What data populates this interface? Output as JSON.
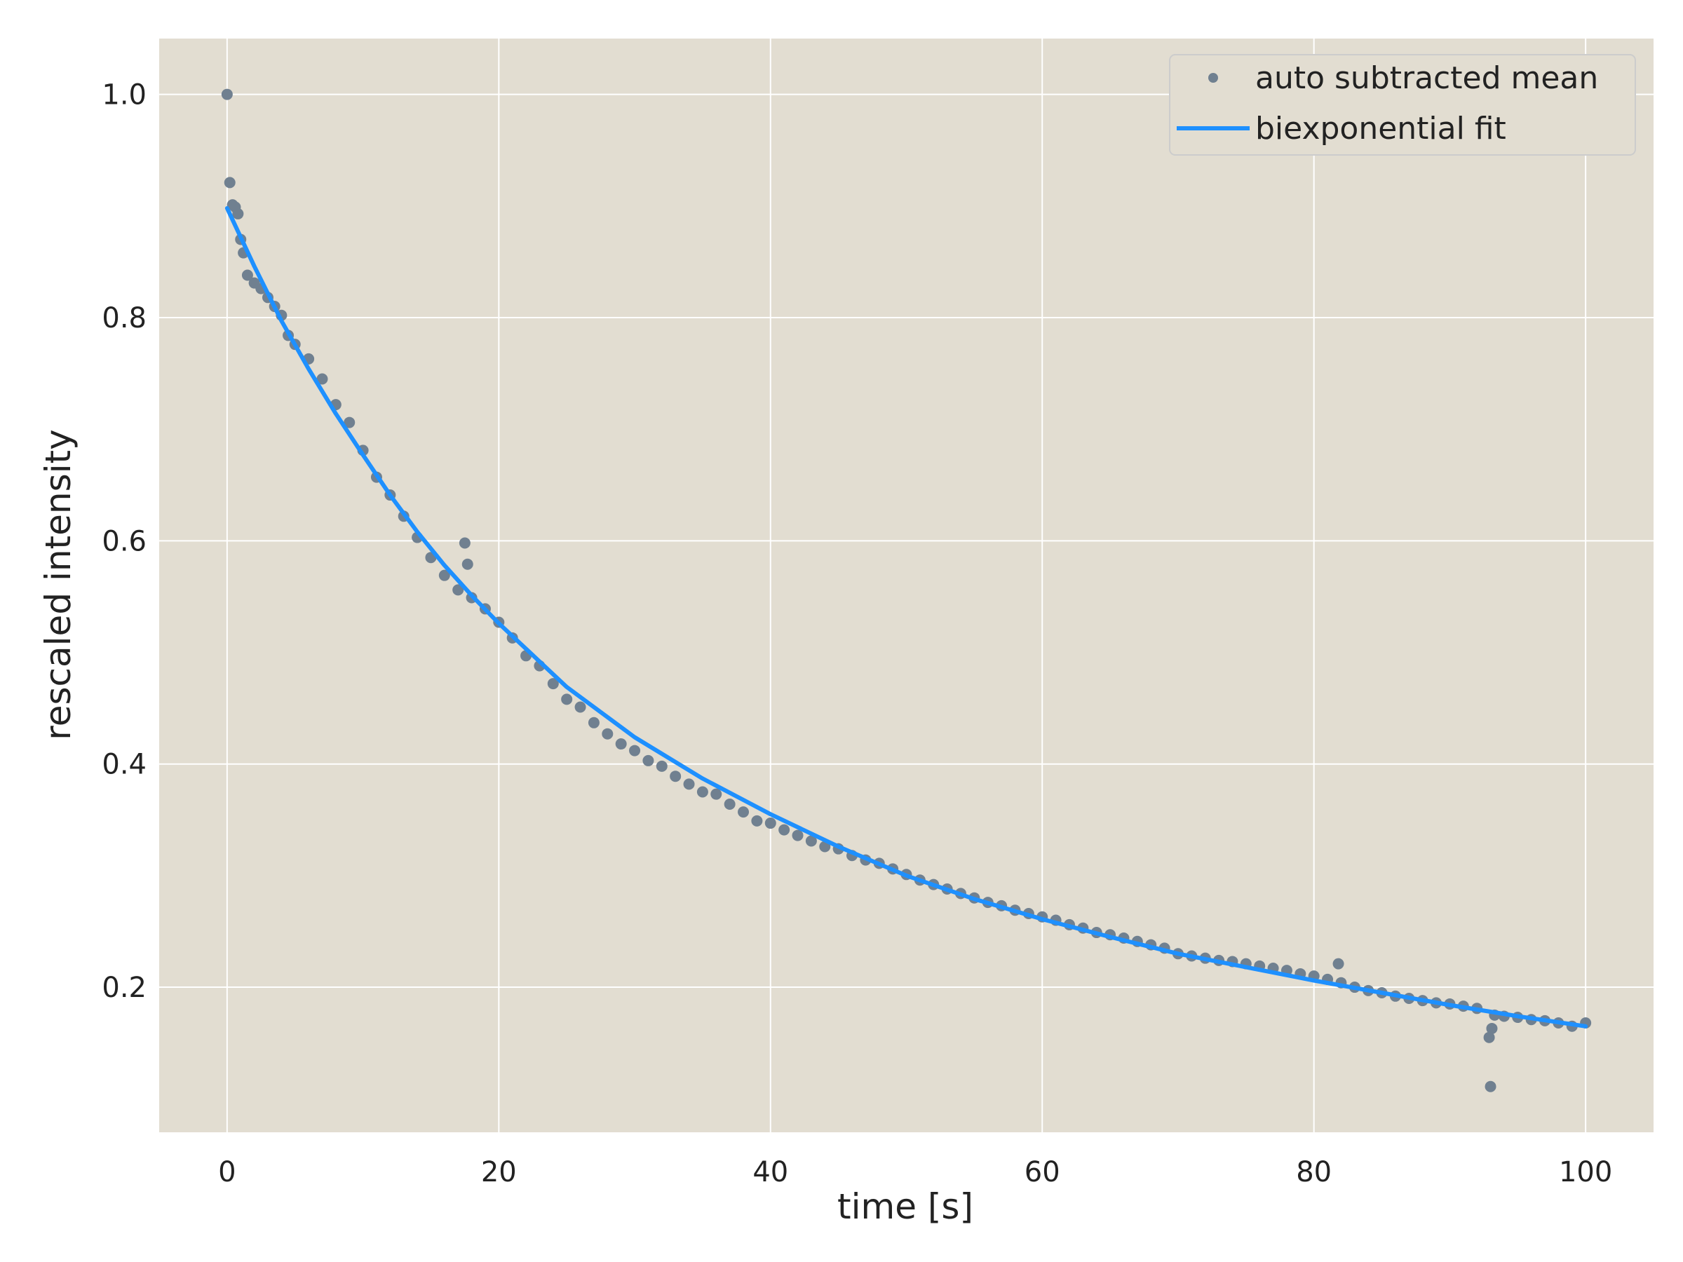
{
  "chart_data": {
    "type": "scatter",
    "xlabel": "time [s]",
    "ylabel": "rescaled intensity",
    "xlim": [
      -5,
      105
    ],
    "ylim": [
      0.07,
      1.05
    ],
    "xticks": [
      0,
      20,
      40,
      60,
      80,
      100
    ],
    "yticks": [
      0.2,
      0.4,
      0.6,
      0.8,
      1.0
    ],
    "xtick_labels": [
      "0",
      "20",
      "40",
      "60",
      "80",
      "100"
    ],
    "ytick_labels": [
      "0.2",
      "0.4",
      "0.6",
      "0.8",
      "1.0"
    ],
    "grid": true,
    "legend_position": "top-right",
    "colors": {
      "background": "#e2ddd1",
      "grid": "#ffffff",
      "points": "#708090",
      "fit": "#1e90ff"
    },
    "series": [
      {
        "name": "auto subtracted mean",
        "kind": "scatter",
        "x": [
          0,
          0.2,
          0.4,
          0.6,
          0.8,
          1,
          1.2,
          1.5,
          2,
          2.5,
          3,
          3.5,
          4,
          4.5,
          5,
          6,
          7,
          8,
          9,
          10,
          11,
          12,
          13,
          14,
          15,
          16,
          17,
          17.5,
          17.7,
          18,
          19,
          20,
          21,
          22,
          23,
          24,
          25,
          26,
          27,
          28,
          29,
          30,
          31,
          32,
          33,
          34,
          35,
          36,
          37,
          38,
          39,
          40,
          41,
          42,
          43,
          44,
          45,
          46,
          47,
          48,
          49,
          50,
          51,
          52,
          53,
          54,
          55,
          56,
          57,
          58,
          59,
          60,
          61,
          62,
          63,
          64,
          65,
          66,
          67,
          68,
          69,
          70,
          71,
          72,
          73,
          74,
          75,
          76,
          77,
          78,
          79,
          80,
          81,
          81.8,
          82,
          83,
          84,
          85,
          86,
          87,
          88,
          89,
          90,
          91,
          92,
          92.9,
          93,
          93.1,
          93.3,
          94,
          95,
          96,
          97,
          98,
          99,
          100
        ],
        "y": [
          1.0,
          0.921,
          0.901,
          0.899,
          0.893,
          0.87,
          0.858,
          0.838,
          0.831,
          0.826,
          0.818,
          0.81,
          0.802,
          0.784,
          0.776,
          0.763,
          0.745,
          0.722,
          0.706,
          0.681,
          0.657,
          0.641,
          0.622,
          0.603,
          0.585,
          0.569,
          0.556,
          0.598,
          0.579,
          0.549,
          0.539,
          0.527,
          0.513,
          0.497,
          0.488,
          0.472,
          0.458,
          0.451,
          0.437,
          0.427,
          0.418,
          0.412,
          0.403,
          0.398,
          0.389,
          0.382,
          0.375,
          0.373,
          0.364,
          0.357,
          0.349,
          0.347,
          0.341,
          0.336,
          0.331,
          0.326,
          0.324,
          0.318,
          0.314,
          0.311,
          0.306,
          0.301,
          0.296,
          0.292,
          0.288,
          0.284,
          0.28,
          0.276,
          0.273,
          0.269,
          0.266,
          0.263,
          0.26,
          0.256,
          0.253,
          0.249,
          0.247,
          0.244,
          0.241,
          0.238,
          0.235,
          0.23,
          0.228,
          0.226,
          0.224,
          0.223,
          0.221,
          0.219,
          0.217,
          0.215,
          0.212,
          0.21,
          0.207,
          0.221,
          0.204,
          0.2,
          0.197,
          0.195,
          0.192,
          0.19,
          0.188,
          0.186,
          0.185,
          0.183,
          0.181,
          0.155,
          0.111,
          0.163,
          0.175,
          0.174,
          0.173,
          0.171,
          0.17,
          0.168,
          0.165,
          0.168
        ]
      },
      {
        "name": "biexponential fit",
        "kind": "line",
        "x": [
          0,
          2,
          4,
          6,
          8,
          10,
          12,
          14,
          16,
          18,
          20,
          25,
          30,
          35,
          40,
          45,
          50,
          55,
          60,
          65,
          70,
          75,
          80,
          85,
          90,
          95,
          100
        ],
        "y": [
          0.898,
          0.846,
          0.797,
          0.754,
          0.714,
          0.677,
          0.641,
          0.608,
          0.578,
          0.551,
          0.526,
          0.469,
          0.424,
          0.387,
          0.355,
          0.326,
          0.3,
          0.279,
          0.261,
          0.245,
          0.23,
          0.218,
          0.206,
          0.195,
          0.184,
          0.174,
          0.165
        ]
      }
    ]
  }
}
